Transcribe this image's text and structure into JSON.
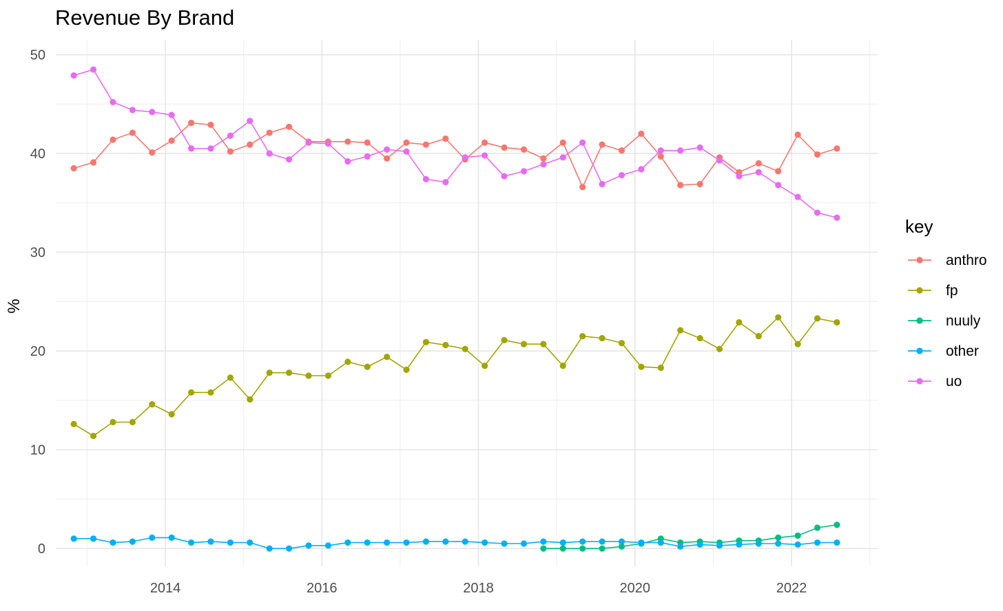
{
  "chart_data": {
    "type": "line",
    "title": "Revenue By Brand",
    "xlabel": "",
    "ylabel": "%",
    "x_ticks": [
      "2014",
      "2016",
      "2018",
      "2020",
      "2022"
    ],
    "y_ticks": [
      "0",
      "10",
      "20",
      "30",
      "40",
      "50"
    ],
    "xlim": [
      2012.6,
      2023.1
    ],
    "ylim": [
      -1.8,
      51.5
    ],
    "grid": true,
    "legend": {
      "title": "key",
      "position": "right"
    },
    "series": [
      {
        "name": "anthro",
        "color": "#f8766d",
        "x": [
          2012.83,
          2013.08,
          2013.33,
          2013.58,
          2013.83,
          2014.08,
          2014.33,
          2014.58,
          2014.83,
          2015.08,
          2015.33,
          2015.58,
          2015.83,
          2016.08,
          2016.33,
          2016.58,
          2016.83,
          2017.08,
          2017.33,
          2017.58,
          2017.83,
          2018.08,
          2018.33,
          2018.58,
          2018.83,
          2019.08,
          2019.33,
          2019.58,
          2019.83,
          2020.08,
          2020.33,
          2020.58,
          2020.83,
          2021.08,
          2021.33,
          2021.58,
          2021.83,
          2022.08,
          2022.33,
          2022.58
        ],
        "y": [
          38.5,
          39.1,
          41.4,
          42.1,
          40.1,
          41.3,
          43.1,
          42.9,
          40.2,
          40.9,
          42.1,
          42.7,
          41.2,
          41.2,
          41.2,
          41.1,
          39.5,
          41.1,
          40.9,
          41.5,
          39.4,
          41.1,
          40.6,
          40.4,
          39.5,
          41.1,
          36.6,
          40.9,
          40.3,
          42.0,
          39.7,
          36.8,
          36.9,
          39.6,
          38.1,
          39.0,
          38.2,
          41.9,
          39.9,
          40.5
        ]
      },
      {
        "name": "fp",
        "color": "#a3a500",
        "x": [
          2012.83,
          2013.08,
          2013.33,
          2013.58,
          2013.83,
          2014.08,
          2014.33,
          2014.58,
          2014.83,
          2015.08,
          2015.33,
          2015.58,
          2015.83,
          2016.08,
          2016.33,
          2016.58,
          2016.83,
          2017.08,
          2017.33,
          2017.58,
          2017.83,
          2018.08,
          2018.33,
          2018.58,
          2018.83,
          2019.08,
          2019.33,
          2019.58,
          2019.83,
          2020.08,
          2020.33,
          2020.58,
          2020.83,
          2021.08,
          2021.33,
          2021.58,
          2021.83,
          2022.08,
          2022.33,
          2022.58
        ],
        "y": [
          12.6,
          11.4,
          12.8,
          12.8,
          14.6,
          13.6,
          15.8,
          15.8,
          17.3,
          15.1,
          17.8,
          17.8,
          17.5,
          17.5,
          18.9,
          18.4,
          19.4,
          18.1,
          20.9,
          20.6,
          20.2,
          18.5,
          21.1,
          20.7,
          20.7,
          18.5,
          21.5,
          21.3,
          20.8,
          18.4,
          18.3,
          22.1,
          21.3,
          20.2,
          22.9,
          21.5,
          23.4,
          20.7,
          23.3,
          22.9
        ]
      },
      {
        "name": "nuuly",
        "color": "#00bf7d",
        "x": [
          2018.83,
          2019.08,
          2019.33,
          2019.58,
          2019.83,
          2020.08,
          2020.33,
          2020.58,
          2020.83,
          2021.08,
          2021.33,
          2021.58,
          2021.83,
          2022.08,
          2022.33,
          2022.58
        ],
        "y": [
          0.0,
          0.0,
          0.0,
          0.0,
          0.2,
          0.5,
          1.0,
          0.6,
          0.7,
          0.6,
          0.8,
          0.8,
          1.1,
          1.3,
          2.1,
          2.4
        ]
      },
      {
        "name": "other",
        "color": "#00b0f6",
        "x": [
          2012.83,
          2013.08,
          2013.33,
          2013.58,
          2013.83,
          2014.08,
          2014.33,
          2014.58,
          2014.83,
          2015.08,
          2015.33,
          2015.58,
          2015.83,
          2016.08,
          2016.33,
          2016.58,
          2016.83,
          2017.08,
          2017.33,
          2017.58,
          2017.83,
          2018.08,
          2018.33,
          2018.58,
          2018.83,
          2019.08,
          2019.33,
          2019.58,
          2019.83,
          2020.08,
          2020.33,
          2020.58,
          2020.83,
          2021.08,
          2021.33,
          2021.58,
          2021.83,
          2022.08,
          2022.33,
          2022.58
        ],
        "y": [
          1.0,
          1.0,
          0.6,
          0.7,
          1.1,
          1.1,
          0.6,
          0.7,
          0.6,
          0.6,
          0.0,
          0.0,
          0.3,
          0.3,
          0.6,
          0.6,
          0.6,
          0.6,
          0.7,
          0.7,
          0.7,
          0.6,
          0.5,
          0.5,
          0.7,
          0.6,
          0.7,
          0.7,
          0.7,
          0.6,
          0.6,
          0.2,
          0.4,
          0.3,
          0.4,
          0.5,
          0.5,
          0.4,
          0.6,
          0.6
        ]
      },
      {
        "name": "uo",
        "color": "#e76bf3",
        "x": [
          2012.83,
          2013.08,
          2013.33,
          2013.58,
          2013.83,
          2014.08,
          2014.33,
          2014.58,
          2014.83,
          2015.08,
          2015.33,
          2015.58,
          2015.83,
          2016.08,
          2016.33,
          2016.58,
          2016.83,
          2017.08,
          2017.33,
          2017.58,
          2017.83,
          2018.08,
          2018.33,
          2018.58,
          2018.83,
          2019.08,
          2019.33,
          2019.58,
          2019.83,
          2020.08,
          2020.33,
          2020.58,
          2020.83,
          2021.08,
          2021.33,
          2021.58,
          2021.83,
          2022.08,
          2022.33,
          2022.58
        ],
        "y": [
          47.9,
          48.5,
          45.2,
          44.4,
          44.2,
          43.9,
          40.5,
          40.5,
          41.8,
          43.3,
          40.0,
          39.4,
          41.1,
          41.0,
          39.2,
          39.7,
          40.4,
          40.2,
          37.4,
          37.1,
          39.6,
          39.8,
          37.7,
          38.2,
          38.9,
          39.6,
          41.1,
          36.9,
          37.8,
          38.4,
          40.3,
          40.3,
          40.6,
          39.3,
          37.7,
          38.1,
          36.8,
          35.6,
          34.0,
          33.5
        ]
      }
    ]
  }
}
